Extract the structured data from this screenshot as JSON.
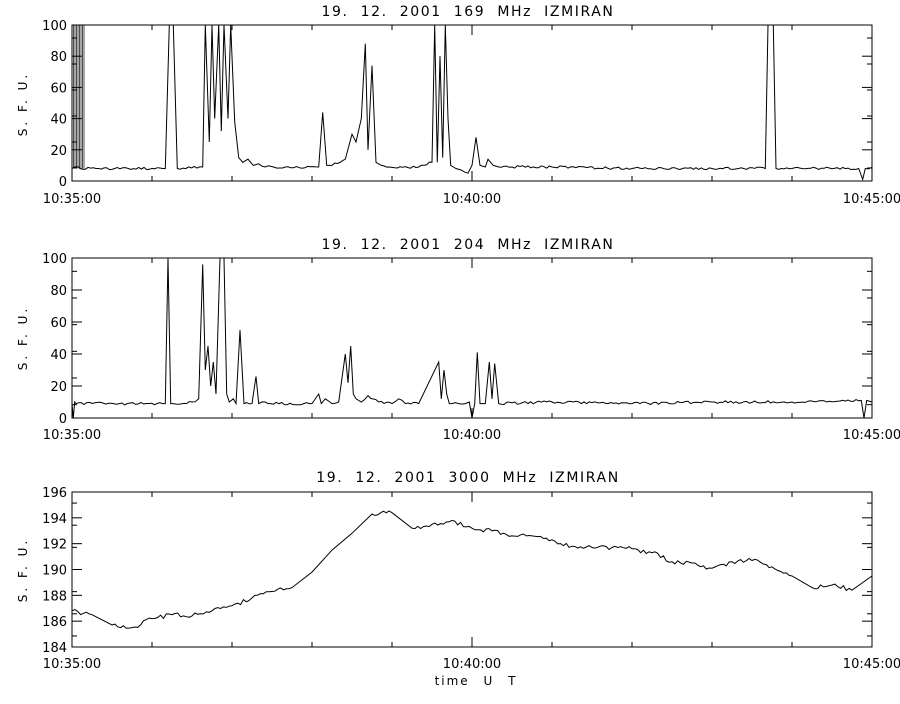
{
  "chart_data": [
    {
      "type": "line",
      "title": "19.  12.  2001    169 MHz    IZMIRAN",
      "ylabel": "S. F. U.",
      "xlabel": "",
      "x_range": [
        "10:35:00",
        "10:45:00"
      ],
      "xticks": [
        "10:35:00",
        "10:40:00",
        "10:45:00"
      ],
      "ylim": [
        0,
        100
      ],
      "yticks": [
        0,
        20,
        40,
        60,
        80,
        100
      ],
      "baseline": 8,
      "series": [
        {
          "x": [
            "10:35:00",
            "10:35:05",
            "10:35:06",
            "10:36:10",
            "10:36:13",
            "10:36:16",
            "10:36:19",
            "10:36:38",
            "10:36:40",
            "10:36:43",
            "10:36:45",
            "10:36:47",
            "10:36:50",
            "10:36:52",
            "10:36:54",
            "10:36:57",
            "10:36:59",
            "10:37:02",
            "10:37:05",
            "10:37:08",
            "10:37:12",
            "10:37:16",
            "10:37:20",
            "10:37:25",
            "10:37:40",
            "10:38:05",
            "10:38:08",
            "10:38:11",
            "10:38:15",
            "10:38:25",
            "10:38:30",
            "10:38:33",
            "10:38:37",
            "10:38:40",
            "10:38:42",
            "10:38:45",
            "10:38:48",
            "10:38:52",
            "10:38:58",
            "10:39:20",
            "10:39:30",
            "10:39:32",
            "10:39:34",
            "10:39:36",
            "10:39:38",
            "10:39:40",
            "10:39:42",
            "10:39:44",
            "10:39:46",
            "10:39:48",
            "10:39:52",
            "10:39:57",
            "10:40:00",
            "10:40:03",
            "10:40:06",
            "10:40:10",
            "10:40:12",
            "10:40:16",
            "10:40:20",
            "10:40:30",
            "10:41:00",
            "10:42:00",
            "10:43:00",
            "10:43:40",
            "10:43:42",
            "10:43:44",
            "10:43:46",
            "10:43:48",
            "10:44:00",
            "10:44:50",
            "10:44:53",
            "10:44:55",
            "10:45:00"
          ],
          "values": [
            8,
            9,
            8,
            8,
            100,
            100,
            8,
            9,
            100,
            25,
            100,
            40,
            100,
            32,
            100,
            40,
            100,
            38,
            15,
            12,
            14,
            10,
            11,
            9,
            9,
            9,
            44,
            10,
            10,
            14,
            30,
            25,
            40,
            88,
            20,
            74,
            12,
            10,
            9,
            9,
            12,
            100,
            12,
            80,
            15,
            100,
            40,
            10,
            9,
            8,
            7,
            5,
            10,
            28,
            10,
            9,
            14,
            10,
            9,
            9,
            9,
            8,
            8,
            8,
            100,
            100,
            100,
            8,
            8,
            8,
            1,
            8,
            9
          ]
        }
      ]
    },
    {
      "type": "line",
      "title": "19.  12.  2001    204 MHz    IZMIRAN",
      "ylabel": "S. F. U.",
      "xlabel": "",
      "x_range": [
        "10:35:00",
        "10:45:00"
      ],
      "xticks": [
        "10:35:00",
        "10:40:00",
        "10:45:00"
      ],
      "ylim": [
        0,
        100
      ],
      "yticks": [
        0,
        20,
        40,
        60,
        80,
        100
      ],
      "baseline": 9,
      "series": [
        {
          "x": [
            "10:35:00",
            "10:35:01",
            "10:35:02",
            "10:35:03",
            "10:36:10",
            "10:36:12",
            "10:36:14",
            "10:36:16",
            "10:36:30",
            "10:36:35",
            "10:36:38",
            "10:36:40",
            "10:36:42",
            "10:36:44",
            "10:36:46",
            "10:36:48",
            "10:36:51",
            "10:36:54",
            "10:36:56",
            "10:36:58",
            "10:37:01",
            "10:37:03",
            "10:37:06",
            "10:37:09",
            "10:37:15",
            "10:37:18",
            "10:37:20",
            "10:37:25",
            "10:37:27",
            "10:37:29",
            "10:38:00",
            "10:38:05",
            "10:38:07",
            "10:38:10",
            "10:38:15",
            "10:38:20",
            "10:38:25",
            "10:38:27",
            "10:38:29",
            "10:38:31",
            "10:38:33",
            "10:38:37",
            "10:38:42",
            "10:38:50",
            "10:39:00",
            "10:39:05",
            "10:39:10",
            "10:39:20",
            "10:39:35",
            "10:39:37",
            "10:39:39",
            "10:39:41",
            "10:39:43",
            "10:39:45",
            "10:39:50",
            "10:39:55",
            "10:39:58",
            "10:40:00",
            "10:40:02",
            "10:40:04",
            "10:40:06",
            "10:40:10",
            "10:40:13",
            "10:40:15",
            "10:40:17",
            "10:40:20",
            "10:41:00",
            "10:42:00",
            "10:43:00",
            "10:44:00",
            "10:44:52",
            "10:44:54",
            "10:44:56",
            "10:45:00"
          ],
          "values": [
            9,
            0,
            10,
            9,
            9,
            100,
            9,
            9,
            10,
            12,
            96,
            30,
            45,
            20,
            35,
            15,
            100,
            100,
            15,
            10,
            12,
            9,
            55,
            9,
            9,
            26,
            9,
            10,
            9,
            9,
            9,
            15,
            9,
            12,
            9,
            10,
            40,
            22,
            45,
            15,
            12,
            10,
            14,
            10,
            9,
            12,
            9,
            9,
            35,
            12,
            30,
            15,
            9,
            9,
            9,
            9,
            10,
            0,
            9,
            41,
            9,
            9,
            35,
            12,
            34,
            9,
            10,
            9,
            10,
            10,
            11,
            0,
            11,
            10
          ]
        }
      ]
    },
    {
      "type": "line",
      "title": "19.  12.  2001    3000 MHz    IZMIRAN",
      "ylabel": "S. F. U.",
      "xlabel": "time   U T",
      "x_range": [
        "10:35:00",
        "10:45:00"
      ],
      "xticks": [
        "10:35:00",
        "10:40:00",
        "10:45:00"
      ],
      "ylim": [
        184,
        196
      ],
      "yticks": [
        184,
        186,
        188,
        190,
        192,
        194,
        196
      ],
      "series": [
        {
          "x": [
            "10:35:00",
            "10:35:15",
            "10:35:30",
            "10:35:45",
            "10:36:00",
            "10:36:15",
            "10:36:30",
            "10:36:45",
            "10:37:00",
            "10:37:15",
            "10:37:30",
            "10:37:45",
            "10:38:00",
            "10:38:15",
            "10:38:30",
            "10:38:45",
            "10:39:00",
            "10:39:15",
            "10:39:30",
            "10:39:45",
            "10:40:00",
            "10:40:15",
            "10:40:30",
            "10:40:45",
            "10:41:00",
            "10:41:15",
            "10:41:30",
            "10:41:45",
            "10:42:00",
            "10:42:15",
            "10:42:30",
            "10:42:45",
            "10:43:00",
            "10:43:15",
            "10:43:30",
            "10:43:45",
            "10:44:00",
            "10:44:15",
            "10:44:30",
            "10:44:45",
            "10:45:00"
          ],
          "values": [
            186.8,
            186.5,
            185.7,
            185.5,
            186.2,
            186.5,
            186.4,
            186.8,
            187.2,
            187.8,
            188.3,
            188.6,
            189.8,
            191.5,
            192.8,
            194.3,
            194.4,
            193.2,
            193.5,
            193.8,
            193.2,
            193.0,
            192.6,
            192.6,
            192.3,
            191.8,
            191.7,
            191.7,
            191.6,
            191.3,
            190.6,
            190.5,
            190.1,
            190.6,
            190.7,
            190.2,
            189.5,
            188.6,
            188.8,
            188.4,
            189.5
          ]
        }
      ]
    }
  ]
}
